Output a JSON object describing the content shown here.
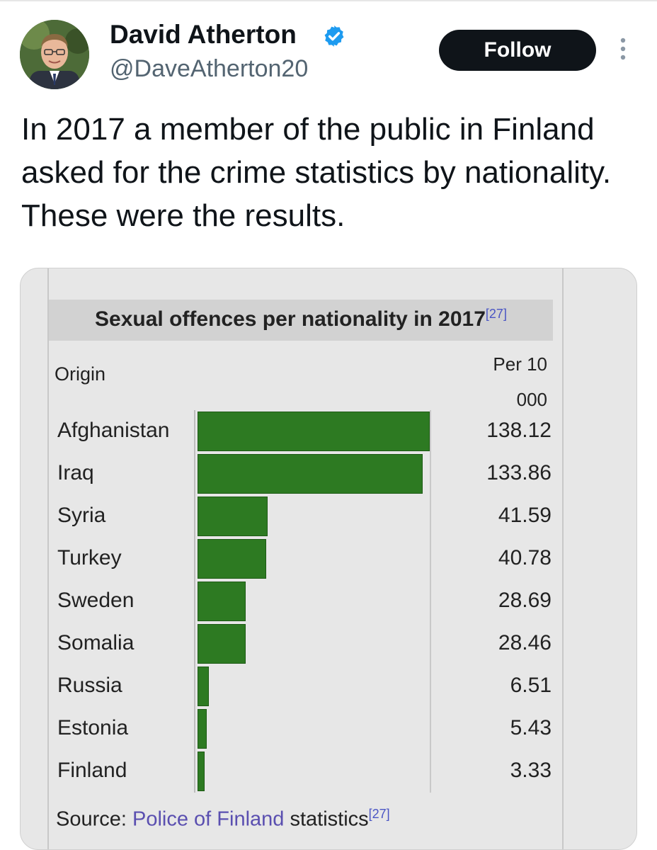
{
  "author": {
    "name": "David Atherton",
    "handle": "@DaveAtherton20",
    "verified_icon": "verified-badge-icon",
    "badge_color": "#1d9bf0"
  },
  "actions": {
    "follow_label": "Follow",
    "more_icon": "more-vertical-icon"
  },
  "tweet": {
    "text": "In 2017 a member of the public in Finland asked for the crime statistics by nationality. These were the results."
  },
  "media": {
    "title": "Sexual offences per nationality in 2017",
    "title_ref": "[27]",
    "origin_header": "Origin",
    "per_header": "Per 10 000",
    "source_prefix": "Source: ",
    "source_link": "Police of Finland",
    "source_suffix": " statistics",
    "source_ref": "[27]",
    "bar_color": "#2d7a22"
  },
  "chart_data": {
    "type": "bar",
    "orientation": "horizontal",
    "title": "Sexual offences per nationality in 2017",
    "categories": [
      "Afghanistan",
      "Iraq",
      "Syria",
      "Turkey",
      "Sweden",
      "Somalia",
      "Russia",
      "Estonia",
      "Finland"
    ],
    "values": [
      138.12,
      133.86,
      41.59,
      40.78,
      28.69,
      28.46,
      6.51,
      5.43,
      3.33
    ],
    "value_labels": [
      "138.12",
      "133.86",
      "41.59",
      "40.78",
      "28.69",
      "28.46",
      "6.51",
      "5.43",
      "3.33"
    ],
    "xlim": [
      0,
      138.12
    ]
  }
}
